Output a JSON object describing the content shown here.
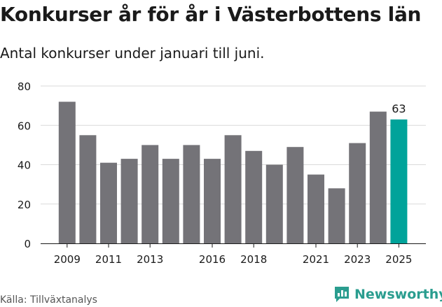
{
  "header": {
    "title": "Konkurser år för år i Västerbottens län",
    "subtitle": "Antal konkurser under januari till juni."
  },
  "footer": {
    "source": "Källa: Tillväxtanalys",
    "brand": "Newsworthy",
    "brand_icon": "newsworthy-chart-logo-icon"
  },
  "colors": {
    "bar": "#747378",
    "highlight": "#00a39a",
    "grid": "#d9d9d9",
    "brand": "#2a9d8f"
  },
  "chart_data": {
    "type": "bar",
    "categories": [
      "2009",
      "2010",
      "2011",
      "2012",
      "2013",
      "2014",
      "2015",
      "2016",
      "2017",
      "2018",
      "2019",
      "2020",
      "2021",
      "2022",
      "2023",
      "2024",
      "2025"
    ],
    "values": [
      72,
      55,
      41,
      43,
      50,
      43,
      50,
      43,
      55,
      47,
      40,
      49,
      35,
      28,
      51,
      67,
      63
    ],
    "tick_labels": [
      "2009",
      "2011",
      "2013",
      "2016",
      "2018",
      "2021",
      "2023",
      "2025"
    ],
    "highlight_category": "2025",
    "data_labels": [
      {
        "category": "2025",
        "text": "63"
      }
    ],
    "yticks": [
      0,
      20,
      40,
      60,
      80
    ],
    "ylim": [
      0,
      80
    ],
    "grid": true
  }
}
